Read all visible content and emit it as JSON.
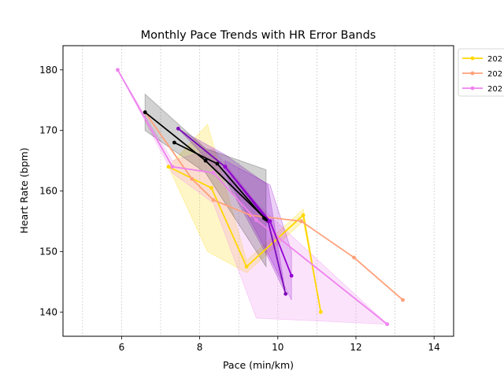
{
  "chart_data": {
    "type": "line",
    "title": "Monthly Pace Trends with HR Error Bands",
    "xlabel": "Pace (min/km)",
    "ylabel": "Heart Rate (bpm)",
    "xlim": [
      4.5,
      14.5
    ],
    "ylim": [
      136,
      184
    ],
    "xticks": [
      6,
      8,
      10,
      12,
      14
    ],
    "yticks": [
      140,
      150,
      160,
      170,
      180
    ],
    "x_grid": true,
    "y_grid": false,
    "x_grid_values": [
      5,
      6,
      7,
      8,
      9,
      10,
      11,
      12,
      13,
      14
    ],
    "legend_position": "upper right, outside plot area (clipped)",
    "legend": [
      {
        "label": "202",
        "color": "#FFD700"
      },
      {
        "label": "202",
        "color": "#FFA07A"
      },
      {
        "label": "202",
        "color": "#EE82EE"
      }
    ],
    "series": [
      {
        "color": "#FFD700",
        "band_color": "#FFD700",
        "band_opacity": 0.22,
        "points": [
          [
            7.2,
            164
          ],
          [
            8.3,
            160.5
          ],
          [
            9.2,
            147.5
          ],
          [
            10.65,
            156
          ],
          [
            11.1,
            140
          ]
        ],
        "band": [
          [
            7.2,
            164,
            164
          ],
          [
            8.2,
            171,
            150
          ],
          [
            9.2,
            148.5,
            146.5
          ],
          [
            10.65,
            157,
            155
          ],
          [
            11.1,
            140,
            140
          ]
        ]
      },
      {
        "color": "#FFA07A",
        "band_color": "#FFA07A",
        "band_opacity": 0.3,
        "points": [
          [
            6.6,
            173
          ],
          [
            7.8,
            162
          ],
          [
            8.35,
            158.5
          ],
          [
            9.3,
            156
          ],
          [
            10.6,
            155
          ],
          [
            11.95,
            149
          ],
          [
            13.2,
            142
          ]
        ],
        "band": [
          [
            6.6,
            173,
            173
          ],
          [
            7.8,
            162,
            162
          ],
          [
            8.35,
            158.5,
            158.5
          ],
          [
            9.3,
            156,
            156
          ],
          [
            10.6,
            155,
            155
          ],
          [
            11.95,
            149,
            149
          ],
          [
            13.2,
            142,
            142
          ]
        ]
      },
      {
        "color": "#EE82EE",
        "band_color": "#EE82EE",
        "band_opacity": 0.22,
        "points": [
          [
            5.9,
            180
          ],
          [
            7.3,
            164
          ],
          [
            8.35,
            163
          ],
          [
            9.45,
            155.2
          ],
          [
            12.8,
            138
          ]
        ],
        "band": [
          [
            5.9,
            180,
            180
          ],
          [
            7.3,
            165,
            163
          ],
          [
            8.35,
            167,
            158
          ],
          [
            9.45,
            158,
            139
          ],
          [
            12.8,
            138,
            138
          ]
        ]
      },
      {
        "color": "#7B0BB8",
        "band_color": "#9932CC",
        "band_opacity": 0.3,
        "points": [
          [
            7.45,
            170.3
          ],
          [
            8.65,
            164
          ],
          [
            9.75,
            155
          ],
          [
            10.2,
            143
          ]
        ],
        "band": [
          [
            7.45,
            170.3,
            170.3
          ],
          [
            8.65,
            166,
            162
          ],
          [
            9.75,
            161,
            149
          ],
          [
            10.2,
            143,
            143
          ]
        ]
      },
      {
        "color": "#000000",
        "band_color": "#333333",
        "band_opacity": 0.22,
        "points": [
          [
            6.6,
            173
          ],
          [
            8.15,
            165
          ],
          [
            9.7,
            155.3
          ]
        ],
        "band": [
          [
            6.6,
            176,
            170
          ],
          [
            8.15,
            167,
            163
          ],
          [
            9.7,
            163.5,
            147.5
          ]
        ]
      },
      {
        "color": "#000000",
        "band_color": "#333333",
        "band_opacity": 0.0,
        "points": [
          [
            7.35,
            168
          ],
          [
            8.45,
            164.5
          ],
          [
            9.65,
            155.5
          ]
        ],
        "band": []
      },
      {
        "color": "#9400D3",
        "band_color": "#9400D3",
        "band_opacity": 0.18,
        "points": [
          [
            8.65,
            164
          ],
          [
            9.8,
            155
          ],
          [
            10.35,
            146
          ]
        ],
        "band": [
          [
            8.65,
            165,
            163
          ],
          [
            9.8,
            161,
            149
          ],
          [
            10.35,
            150,
            142
          ]
        ]
      }
    ]
  }
}
